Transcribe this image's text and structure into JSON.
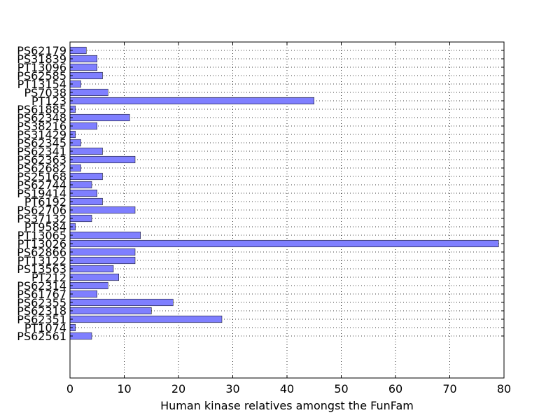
{
  "chart_data": {
    "type": "bar",
    "orientation": "horizontal",
    "title": "",
    "xlabel": "Human kinase relatives amongst the FunFam",
    "ylabel": "",
    "xlim": [
      0,
      80
    ],
    "xticks": [
      "0",
      "10",
      "20",
      "30",
      "40",
      "50",
      "60",
      "70",
      "80"
    ],
    "grid": true,
    "bar_color": "#7f7fff",
    "categories": [
      "PS62179",
      "PS31839",
      "PT13096",
      "PS62585",
      "PT13154",
      "PS7038",
      "PT123",
      "PS61885",
      "PS62348",
      "PS38216",
      "PS31429",
      "PS62345",
      "PS62341",
      "PS62363",
      "PS62682",
      "PS25168",
      "PS62744",
      "PS19414",
      "PT6192",
      "PS62706",
      "PS37132",
      "PT9584",
      "PT13065",
      "PT13026",
      "PS62866",
      "PT13122",
      "PS13563",
      "PT212",
      "PS62314",
      "PS61767",
      "PS62355",
      "PS62318",
      "PS62351",
      "PT1074",
      "PS62561"
    ],
    "values": [
      3,
      5,
      5,
      6,
      2,
      7,
      45,
      1,
      11,
      5,
      1,
      2,
      6,
      12,
      2,
      6,
      4,
      5,
      6,
      12,
      4,
      1,
      13,
      79,
      12,
      12,
      8,
      9,
      7,
      5,
      19,
      15,
      28,
      1,
      4
    ]
  }
}
